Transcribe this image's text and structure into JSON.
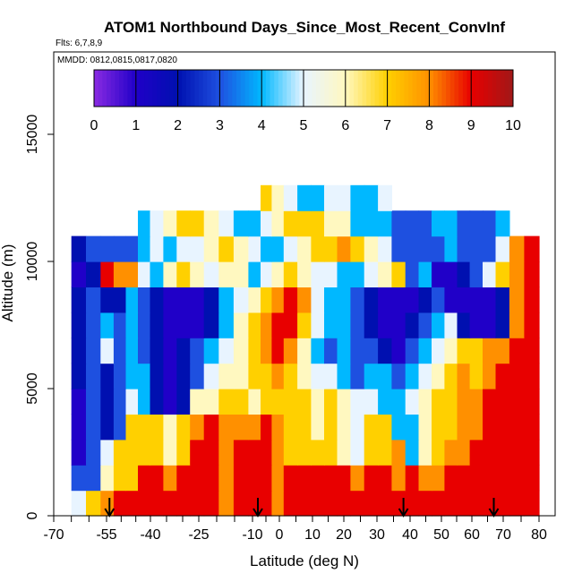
{
  "chart_data": {
    "type": "heatmap",
    "title": "ATOM1 Northbound Days_Since_Most_Recent_ConvInf",
    "subtitle": "Flts: 6,7,8,9",
    "annotation": "MMDD: 0812,0815,0817,0820",
    "xlabel": "Latitude (deg N)",
    "ylabel": "Altitude (m)",
    "xlim": [
      -70,
      80
    ],
    "ylim": [
      0,
      17500
    ],
    "x_tick_labels": [
      "-70",
      "-55",
      "-40",
      "-25",
      "-10",
      "0",
      "10",
      "20",
      "30",
      "40",
      "50",
      "60",
      "70",
      "80"
    ],
    "x_tick_values": [
      -70,
      -55,
      -40,
      -25,
      -10,
      0,
      10,
      20,
      30,
      40,
      50,
      60,
      70,
      80
    ],
    "y_ticks": [
      0,
      5000,
      10000,
      15000
    ],
    "y_tick_labels": [
      "0",
      "5000",
      "10000",
      "15000"
    ],
    "colorbar": {
      "min": 0,
      "max": 10,
      "tick_labels": [
        "0",
        "1",
        "2",
        "3",
        "4",
        "5",
        "6",
        "7",
        "8",
        "9",
        "10"
      ],
      "colors": [
        "#8a2be2",
        "#2000c8",
        "#0010b0",
        "#1e50e0",
        "#00b8ff",
        "#e8f4ff",
        "#fff8c0",
        "#ffd000",
        "#ff9000",
        "#e80000",
        "#a01818"
      ]
    },
    "arrows_x": [
      -54,
      -8,
      38,
      67
    ],
    "layers": [
      {
        "y0": 0,
        "y1": 1000,
        "values": [
          5,
          7,
          8,
          9,
          9,
          9,
          9,
          9,
          9,
          9,
          9,
          8,
          9,
          9,
          9,
          8,
          9,
          9,
          9,
          9,
          9,
          9,
          9,
          9,
          9,
          9,
          9,
          9,
          9,
          9,
          9,
          9,
          9,
          9,
          9
        ]
      },
      {
        "y0": 1000,
        "y1": 2000,
        "values": [
          3,
          3,
          6,
          7,
          7,
          9,
          9,
          8,
          9,
          9,
          9,
          8,
          9,
          9,
          9,
          8,
          9,
          9,
          9,
          9,
          9,
          8,
          9,
          9,
          8,
          9,
          8,
          8,
          9,
          9,
          9,
          9,
          9,
          9,
          9
        ]
      },
      {
        "y0": 2000,
        "y1": 3000,
        "values": [
          1,
          3,
          5,
          7,
          7,
          7,
          7,
          6,
          7,
          9,
          9,
          8,
          9,
          9,
          9,
          8,
          7,
          7,
          7,
          7,
          6,
          5,
          7,
          7,
          8,
          4,
          6,
          7,
          8,
          8,
          9,
          9,
          9,
          9,
          9
        ]
      },
      {
        "y0": 3000,
        "y1": 4000,
        "values": [
          1,
          3,
          2,
          3,
          7,
          7,
          7,
          6,
          7,
          8,
          9,
          8,
          8,
          8,
          9,
          8,
          7,
          7,
          6,
          7,
          6,
          5,
          7,
          7,
          4,
          4,
          6,
          7,
          7,
          8,
          8,
          9,
          9,
          9,
          9
        ]
      },
      {
        "y0": 4000,
        "y1": 5000,
        "values": [
          1,
          3,
          2,
          3,
          5,
          4,
          2,
          1,
          2,
          6,
          6,
          7,
          7,
          6,
          7,
          7,
          7,
          7,
          6,
          7,
          6,
          5,
          5,
          4,
          4,
          5,
          6,
          7,
          7,
          8,
          8,
          9,
          9,
          9,
          9
        ]
      },
      {
        "y0": 5000,
        "y1": 6000,
        "values": [
          2,
          3,
          2,
          3,
          4,
          4,
          2,
          1,
          2,
          3,
          5,
          6,
          6,
          7,
          7,
          8,
          7,
          6,
          5,
          5,
          4,
          3,
          4,
          4,
          3,
          4,
          5,
          6,
          7,
          8,
          7,
          8,
          9,
          9,
          9
        ]
      },
      {
        "y0": 6000,
        "y1": 7000,
        "values": [
          2,
          3,
          5,
          3,
          4,
          3,
          2,
          1,
          2,
          3,
          4,
          5,
          6,
          7,
          8,
          9,
          8,
          6,
          4,
          3,
          4,
          3,
          3,
          2,
          1,
          3,
          4,
          5,
          6,
          7,
          7,
          8,
          8,
          9,
          9
        ]
      },
      {
        "y0": 7000,
        "y1": 8000,
        "values": [
          2,
          3,
          4,
          3,
          4,
          3,
          2,
          1,
          1,
          1,
          2,
          4,
          6,
          7,
          8,
          9,
          9,
          7,
          5,
          4,
          4,
          3,
          2,
          1,
          1,
          2,
          3,
          4,
          5,
          2,
          1,
          1,
          2,
          8,
          9
        ]
      },
      {
        "y0": 8000,
        "y1": 9000,
        "values": [
          2,
          3,
          2,
          2,
          4,
          3,
          2,
          1,
          1,
          1,
          2,
          4,
          5,
          6,
          7,
          8,
          9,
          8,
          5,
          4,
          4,
          3,
          2,
          1,
          1,
          1,
          2,
          3,
          1,
          1,
          1,
          1,
          2,
          8,
          9
        ]
      },
      {
        "y0": 9000,
        "y1": 10000,
        "values": [
          1,
          2,
          9,
          8,
          8,
          5,
          4,
          6,
          7,
          6,
          5,
          6,
          6,
          4,
          5,
          6,
          7,
          6,
          5,
          5,
          4,
          4,
          5,
          6,
          7,
          3,
          4,
          1,
          1,
          2,
          3,
          5,
          7,
          8,
          9
        ]
      },
      {
        "y0": 10000,
        "y1": 11000,
        "values": [
          2,
          3,
          3,
          3,
          3,
          4,
          5,
          4,
          5,
          5,
          6,
          7,
          6,
          5,
          4,
          4,
          5,
          6,
          7,
          7,
          8,
          7,
          6,
          5,
          3,
          3,
          3,
          3,
          4,
          3,
          3,
          3,
          5,
          8,
          9
        ]
      },
      {
        "y0": 11000,
        "y1": 12000,
        "values": [
          null,
          null,
          null,
          null,
          null,
          4,
          5,
          6,
          7,
          7,
          6,
          5,
          4,
          4,
          5,
          6,
          7,
          7,
          7,
          6,
          6,
          4,
          4,
          4,
          3,
          3,
          3,
          4,
          4,
          3,
          3,
          3,
          4,
          null,
          null
        ]
      },
      {
        "y0": 12000,
        "y1": 13000,
        "values": [
          null,
          null,
          null,
          null,
          null,
          null,
          null,
          null,
          null,
          null,
          null,
          null,
          null,
          null,
          7,
          6,
          5,
          4,
          4,
          5,
          5,
          4,
          4,
          5,
          null,
          null,
          null,
          null,
          null,
          null,
          null,
          null,
          null,
          null,
          null
        ]
      }
    ]
  }
}
